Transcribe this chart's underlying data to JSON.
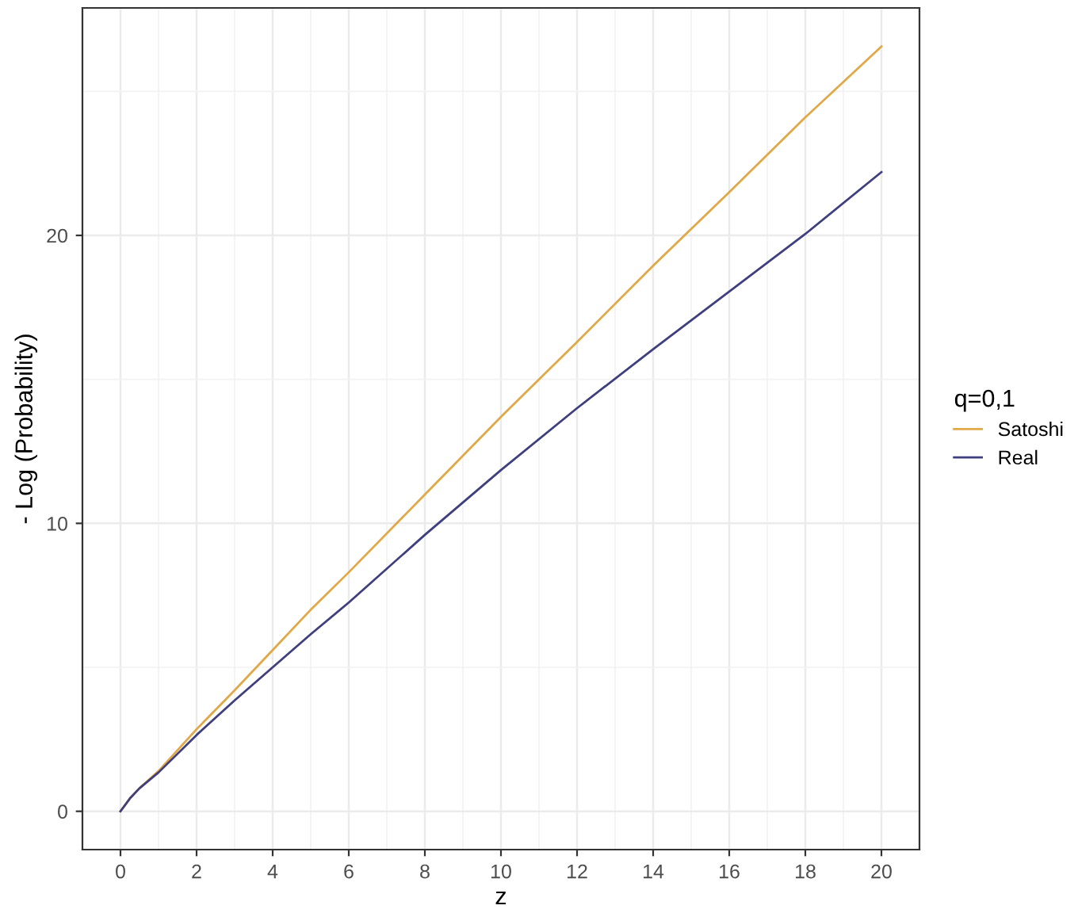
{
  "chart_data": {
    "type": "line",
    "xlabel": "z",
    "ylabel": "- Log (Probability)",
    "legend_title": "q=0,1",
    "legend": "right",
    "xlim": [
      -1,
      21
    ],
    "ylim": [
      -1.33,
      27.9
    ],
    "xticks": [
      0,
      2,
      4,
      6,
      8,
      10,
      12,
      14,
      16,
      18,
      20
    ],
    "yticks": [
      0,
      10,
      20
    ],
    "grid": true,
    "series": [
      {
        "name": "Satoshi",
        "color": "#e0a846",
        "x": [
          0,
          0.25,
          0.5,
          1,
          2,
          3,
          4,
          5,
          6,
          8,
          10,
          12,
          14,
          16,
          18,
          20
        ],
        "values": [
          0,
          0.45,
          0.8,
          1.4,
          2.85,
          4.2,
          5.6,
          7.0,
          8.3,
          11.0,
          13.7,
          16.3,
          18.95,
          21.5,
          24.1,
          26.56
        ]
      },
      {
        "name": "Real",
        "color": "#3f3f7f",
        "x": [
          0,
          0.25,
          0.5,
          1,
          2,
          3,
          4,
          5,
          6,
          8,
          10,
          12,
          14,
          16,
          18,
          20
        ],
        "values": [
          0,
          0.45,
          0.8,
          1.35,
          2.65,
          3.85,
          5.0,
          6.15,
          7.25,
          9.6,
          11.85,
          14.0,
          16.05,
          18.05,
          20.05,
          22.2
        ]
      }
    ]
  }
}
